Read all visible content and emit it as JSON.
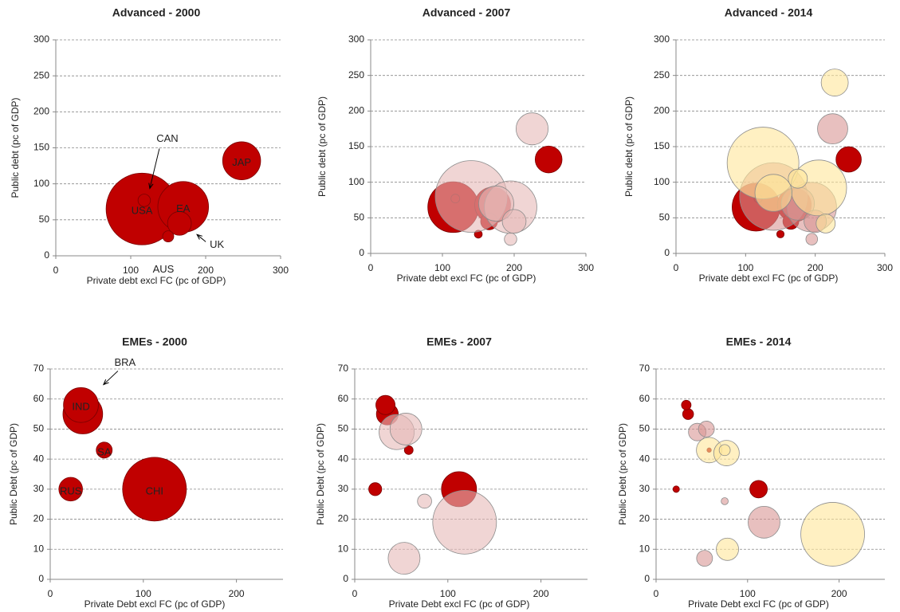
{
  "chart_data": [
    {
      "type": "bubble",
      "title": "Advanced - 2000",
      "x_label": "Private debt excl FC (pc of GDP)",
      "y_label": "Public debt (pc of GDP)",
      "xlim": [
        0,
        300
      ],
      "xticks": [
        0,
        100,
        200,
        300
      ],
      "ylim": [
        0,
        300
      ],
      "yticks": [
        0,
        50,
        100,
        150,
        200,
        250,
        300
      ],
      "grid": true,
      "series": [
        {
          "color": "#c00000",
          "opacity": 1,
          "x": [
            115,
            170,
            165,
            248,
            118,
            150
          ],
          "y": [
            65,
            68,
            45,
            132,
            77,
            27
          ],
          "size": [
            100,
            50,
            11,
            28,
            3,
            2.4
          ],
          "labels": [
            "USA",
            "EA",
            "UK",
            "JAP",
            "CAN",
            "AUS"
          ]
        }
      ]
    },
    {
      "type": "bubble",
      "title": "Advanced - 2007",
      "x_label": "Private debt excl FC (pc of GDP)",
      "y_label": "Public debt (pc of GDP)",
      "xlim": [
        0,
        300
      ],
      "xticks": [
        0,
        100,
        200,
        300
      ],
      "ylim": [
        0,
        300
      ],
      "yticks": [
        0,
        50,
        100,
        150,
        200,
        250,
        300
      ],
      "grid": true,
      "series": [
        {
          "color": "#c00000",
          "opacity": 1,
          "x": [
            115,
            170,
            165,
            248,
            118,
            150
          ],
          "y": [
            65,
            68,
            45,
            132,
            77,
            27
          ],
          "size": [
            100,
            50,
            11,
            28,
            3,
            2.4
          ]
        },
        {
          "color": "#e6b9b8",
          "opacity": 0.6,
          "x": [
            140,
            195,
            175,
            225,
            200,
            195
          ],
          "y": [
            80,
            65,
            70,
            175,
            45,
            20
          ],
          "size": [
            200,
            107,
            48,
            40,
            22,
            6
          ]
        }
      ]
    },
    {
      "type": "bubble",
      "title": "Advanced - 2014",
      "x_label": "Private debt excl FC (pc of GDP)",
      "y_label": "Public debt (pc of GDP)",
      "xlim": [
        0,
        300
      ],
      "xticks": [
        0,
        100,
        200,
        300
      ],
      "ylim": [
        0,
        300
      ],
      "yticks": [
        0,
        50,
        100,
        150,
        200,
        250,
        300
      ],
      "grid": true,
      "series": [
        {
          "color": "#c00000",
          "opacity": 1,
          "x": [
            115,
            170,
            165,
            248,
            118,
            150
          ],
          "y": [
            65,
            68,
            45,
            132,
            77,
            27
          ],
          "size": [
            100,
            50,
            11,
            28,
            3,
            2.4
          ]
        },
        {
          "color": "#d99694",
          "opacity": 0.6,
          "x": [
            140,
            195,
            175,
            225,
            200,
            195
          ],
          "y": [
            80,
            65,
            70,
            175,
            45,
            20
          ],
          "size": [
            200,
            107,
            48,
            40,
            22,
            6
          ]
        },
        {
          "color": "#ffe699",
          "opacity": 0.6,
          "x": [
            125,
            205,
            140,
            228,
            175,
            215
          ],
          "y": [
            127,
            92,
            85,
            240,
            105,
            42
          ],
          "size": [
            225,
            136,
            60,
            32,
            16,
            16
          ]
        }
      ]
    },
    {
      "type": "bubble",
      "title": "EMEs - 2000",
      "x_label": "Private Debt excl FC (pc of GDP)",
      "y_label": "Public Debt (pc of GDP)",
      "xlim": [
        0,
        250
      ],
      "xticks": [
        0,
        100,
        200
      ],
      "ylim": [
        0,
        70
      ],
      "yticks": [
        0,
        10,
        20,
        30,
        40,
        50,
        60,
        70
      ],
      "grid": true,
      "series": [
        {
          "color": "#c00000",
          "opacity": 1,
          "x": [
            112,
            35,
            33,
            22,
            58
          ],
          "y": [
            30,
            55,
            58,
            30,
            43
          ],
          "size": [
            80,
            31,
            24,
            11,
            5
          ],
          "labels": [
            "CHI",
            "BRA",
            "IND",
            "RUS",
            "SA"
          ]
        }
      ]
    },
    {
      "type": "bubble",
      "title": "EMEs - 2007",
      "x_label": "Private Debt excl FC (pc of GDP)",
      "y_label": "Public Debt (pc of GDP)",
      "xlim": [
        0,
        250
      ],
      "xticks": [
        0,
        100,
        200
      ],
      "ylim": [
        0,
        70
      ],
      "yticks": [
        0,
        10,
        20,
        30,
        40,
        50,
        60,
        70
      ],
      "grid": true,
      "series": [
        {
          "color": "#c00000",
          "opacity": 1,
          "x": [
            112,
            35,
            33,
            22,
            58
          ],
          "y": [
            30,
            55,
            58,
            30,
            43
          ],
          "size": [
            80,
            31,
            24,
            11,
            5
          ]
        },
        {
          "color": "#e6b9b8",
          "opacity": 0.6,
          "x": [
            118,
            45,
            55,
            75,
            53
          ],
          "y": [
            19,
            49,
            50,
            26,
            7
          ],
          "size": [
            264,
            80,
            66,
            13,
            66
          ]
        }
      ]
    },
    {
      "type": "bubble",
      "title": "EMEs - 2014",
      "x_label": "Private Debt excl FC (pc of GDP)",
      "y_label": "Public Debt (pc of GDP)",
      "xlim": [
        0,
        250
      ],
      "xticks": [
        0,
        100,
        200
      ],
      "ylim": [
        0,
        70
      ],
      "yticks": [
        0,
        10,
        20,
        30,
        40,
        50,
        60,
        70
      ],
      "grid": true,
      "series": [
        {
          "color": "#c00000",
          "opacity": 1,
          "x": [
            112,
            35,
            33,
            22,
            58
          ],
          "y": [
            30,
            55,
            58,
            30,
            43
          ],
          "size": [
            80,
            31,
            24,
            11,
            5
          ]
        },
        {
          "color": "#d99694",
          "opacity": 0.6,
          "x": [
            118,
            45,
            55,
            75,
            53
          ],
          "y": [
            19,
            49,
            50,
            26,
            7
          ],
          "size": [
            264,
            80,
            66,
            13,
            66
          ]
        },
        {
          "color": "#ffe699",
          "opacity": 0.6,
          "x": [
            193,
            58,
            77,
            78,
            75
          ],
          "y": [
            15,
            43,
            42,
            10,
            43
          ],
          "size": [
            1058,
            169,
            169,
            130,
            32
          ]
        }
      ]
    }
  ]
}
